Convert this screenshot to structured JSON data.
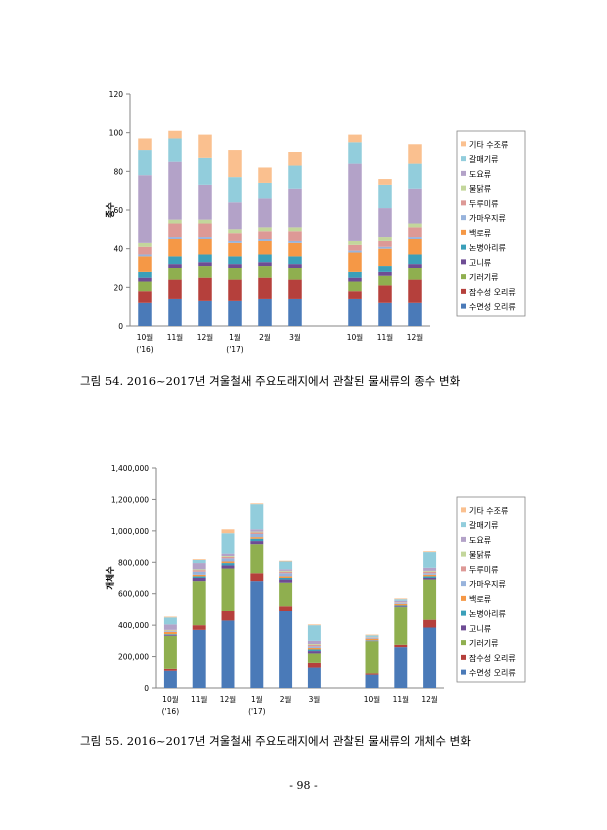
{
  "colors": [
    "#4a7ab8",
    "#b5403c",
    "#8faf4f",
    "#6e4c94",
    "#3a9fb9",
    "#f59846",
    "#98b3dc",
    "#dd9996",
    "#c3d69b",
    "#b3a2c8",
    "#92cddc",
    "#fac08f"
  ],
  "legend": [
    "기타 수조류",
    "갈매기류",
    "도요류",
    "물닭류",
    "두루미류",
    "가마우지류",
    "백로류",
    "논병아리류",
    "고니류",
    "기러기류",
    "잠수성 오리류",
    "수면성 오리류"
  ],
  "chart_data": [
    {
      "type": "bar",
      "stacked": true,
      "ylabel": "종수",
      "ylim": [
        0,
        120
      ],
      "yticks": [
        "0",
        "20",
        "40",
        "60",
        "80",
        "100",
        "120"
      ],
      "categories": [
        "10월 ('16)",
        "11월",
        "12월",
        "1월 ('17)",
        "2월",
        "3월",
        "10월",
        "11월",
        "12월"
      ],
      "category_lines": [
        [
          "10월",
          "('16)"
        ],
        [
          "11월"
        ],
        [
          "12월"
        ],
        [
          "1월",
          "('17)"
        ],
        [
          "2월"
        ],
        [
          "3월"
        ],
        [
          "10월"
        ],
        [
          "11월"
        ],
        [
          "12월"
        ]
      ],
      "legend_position": "right",
      "grid": false,
      "series": [
        {
          "name": "수면성 오리류",
          "values": [
            12,
            14,
            13,
            13,
            14,
            14,
            14,
            12,
            12
          ]
        },
        {
          "name": "잠수성 오리류",
          "values": [
            6,
            10,
            12,
            11,
            11,
            10,
            4,
            9,
            12
          ]
        },
        {
          "name": "기러기류",
          "values": [
            5,
            6,
            6,
            6,
            6,
            6,
            5,
            5,
            6
          ]
        },
        {
          "name": "고니류",
          "values": [
            2,
            2,
            2,
            2,
            2,
            2,
            2,
            2,
            2
          ]
        },
        {
          "name": "논병아리류",
          "values": [
            3,
            4,
            4,
            4,
            4,
            4,
            3,
            3,
            5
          ]
        },
        {
          "name": "백로류",
          "values": [
            8,
            9,
            8,
            7,
            7,
            7,
            10,
            9,
            8
          ]
        },
        {
          "name": "가마우지류",
          "values": [
            1,
            1,
            1,
            1,
            1,
            1,
            1,
            1,
            1
          ]
        },
        {
          "name": "두루미류",
          "values": [
            4,
            7,
            7,
            4,
            4,
            5,
            3,
            3,
            5
          ]
        },
        {
          "name": "물닭류",
          "values": [
            2,
            2,
            2,
            2,
            2,
            2,
            2,
            2,
            2
          ]
        },
        {
          "name": "도요류",
          "values": [
            35,
            30,
            18,
            14,
            15,
            20,
            40,
            15,
            18
          ]
        },
        {
          "name": "갈매기류",
          "values": [
            13,
            12,
            14,
            13,
            8,
            12,
            11,
            12,
            13
          ]
        },
        {
          "name": "기타 수조류",
          "values": [
            6,
            4,
            12,
            14,
            8,
            7,
            4,
            3,
            10
          ]
        }
      ]
    },
    {
      "type": "bar",
      "stacked": true,
      "ylabel": "개체수",
      "ylim": [
        0,
        1400000
      ],
      "yticks": [
        "0",
        "200,000",
        "400,000",
        "600,000",
        "800,000",
        "1,000,000",
        "1,200,000",
        "1,400,000"
      ],
      "categories": [
        "10월 ('16)",
        "11월",
        "12월",
        "1월 ('17)",
        "2월",
        "3월",
        "10월",
        "11월",
        "12월"
      ],
      "category_lines": [
        [
          "10월",
          "('16)"
        ],
        [
          "11월"
        ],
        [
          "12월"
        ],
        [
          "1월",
          "('17)"
        ],
        [
          "2월"
        ],
        [
          "3월"
        ],
        [
          "10월"
        ],
        [
          "11월"
        ],
        [
          "12월"
        ]
      ],
      "legend_position": "right",
      "grid": false,
      "series": [
        {
          "name": "수면성 오리류",
          "values": [
            110000,
            370000,
            430000,
            680000,
            490000,
            130000,
            85000,
            260000,
            385000
          ]
        },
        {
          "name": "잠수성 오리류",
          "values": [
            12000,
            30000,
            60000,
            50000,
            30000,
            30000,
            8000,
            15000,
            50000
          ]
        },
        {
          "name": "기러기류",
          "values": [
            210000,
            280000,
            270000,
            185000,
            150000,
            60000,
            205000,
            240000,
            255000
          ]
        },
        {
          "name": "고니류",
          "values": [
            5000,
            20000,
            20000,
            20000,
            20000,
            15000,
            3000,
            5000,
            10000
          ]
        },
        {
          "name": "논병아리류",
          "values": [
            5000,
            10000,
            15000,
            15000,
            10000,
            10000,
            3000,
            5000,
            10000
          ]
        },
        {
          "name": "백로류",
          "values": [
            15000,
            10000,
            10000,
            10000,
            10000,
            10000,
            10000,
            10000,
            10000
          ]
        },
        {
          "name": "가마우지류",
          "values": [
            5000,
            20000,
            20000,
            20000,
            20000,
            10000,
            5000,
            5000,
            10000
          ]
        },
        {
          "name": "두루미류",
          "values": [
            3000,
            10000,
            10000,
            10000,
            10000,
            10000,
            1000,
            3000,
            10000
          ]
        },
        {
          "name": "물닭류",
          "values": [
            5000,
            5000,
            5000,
            5000,
            5000,
            5000,
            2000,
            2000,
            5000
          ]
        },
        {
          "name": "도요류",
          "values": [
            35000,
            40000,
            15000,
            15000,
            10000,
            20000,
            3000,
            10000,
            20000
          ]
        },
        {
          "name": "갈매기류",
          "values": [
            45000,
            20000,
            130000,
            160000,
            50000,
            100000,
            10000,
            10000,
            100000
          ]
        },
        {
          "name": "기타 수조류",
          "values": [
            5000,
            5000,
            25000,
            5000,
            5000,
            5000,
            5000,
            5000,
            5000
          ]
        }
      ]
    }
  ],
  "captions": [
    "그림 54. 2016~2017년 겨울철새 주요도래지에서 관찰된 물새류의 종수 변화",
    "그림 55. 2016~2017년 겨울철새 주요도래지에서 관찰된 물새류의 개체수 변화"
  ],
  "page_number": "- 98 -"
}
